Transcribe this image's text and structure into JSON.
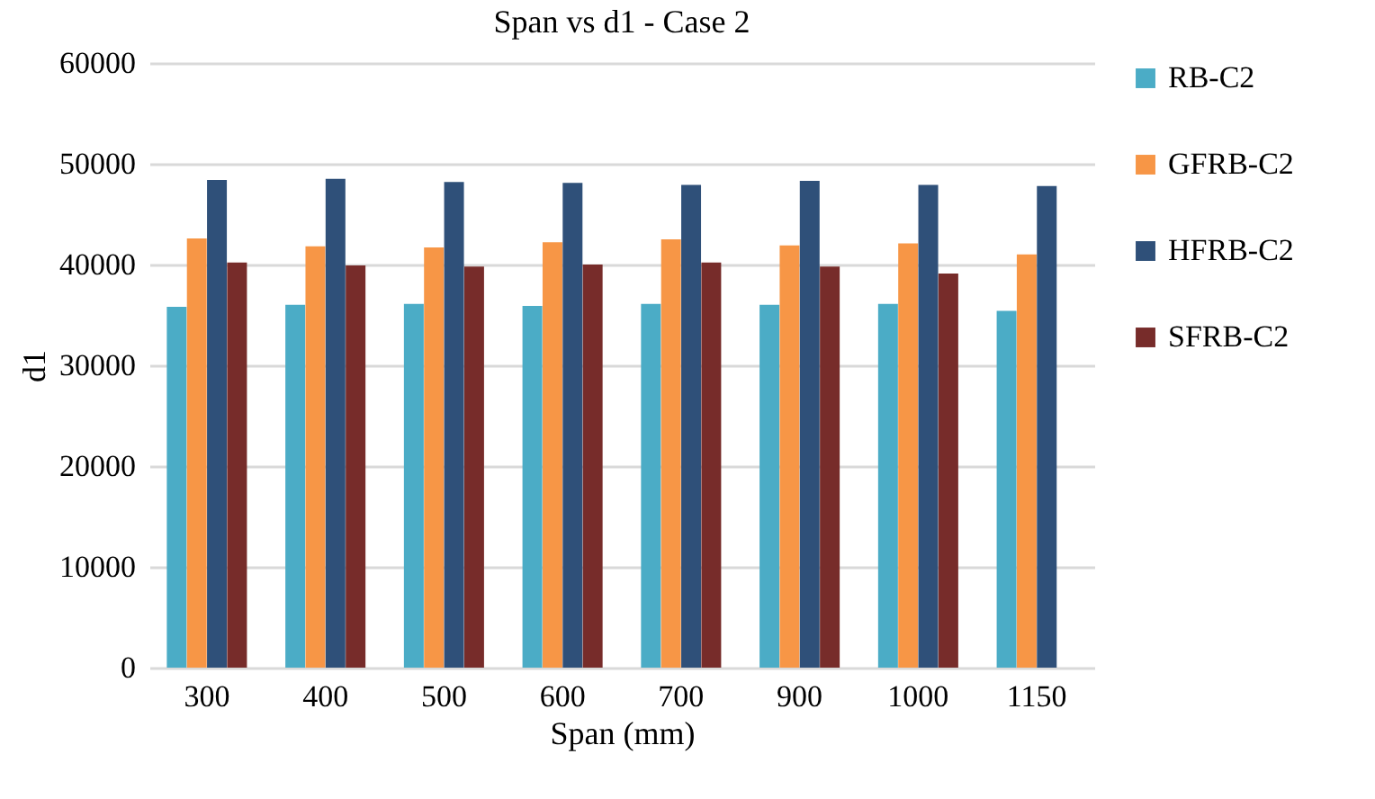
{
  "chart_data": {
    "type": "bar",
    "title": "Span vs d1 - Case 2",
    "xlabel": "Span (mm)",
    "ylabel": "d1",
    "categories": [
      "300",
      "400",
      "500",
      "600",
      "700",
      "900",
      "1000",
      "1150"
    ],
    "series": [
      {
        "name": "RB-C2",
        "color": "#4bacc6",
        "values": [
          35800,
          36000,
          36100,
          35900,
          36100,
          36000,
          36100,
          35400
        ]
      },
      {
        "name": "GFRB-C2",
        "color": "#f79646",
        "values": [
          42600,
          41800,
          41700,
          42200,
          42500,
          41900,
          42100,
          41000
        ]
      },
      {
        "name": "HFRB-C2",
        "color": "#2f5079",
        "values": [
          48400,
          48500,
          48200,
          48100,
          47900,
          48300,
          47900,
          47800
        ]
      },
      {
        "name": "SFRB-C2",
        "color": "#772c2a",
        "values": [
          40200,
          39900,
          39800,
          40000,
          40200,
          39800,
          39100,
          null
        ]
      }
    ],
    "ylim": [
      0,
      60000
    ],
    "yticks": [
      0,
      10000,
      20000,
      30000,
      40000,
      50000,
      60000
    ],
    "grid": "y",
    "legend": "right"
  }
}
